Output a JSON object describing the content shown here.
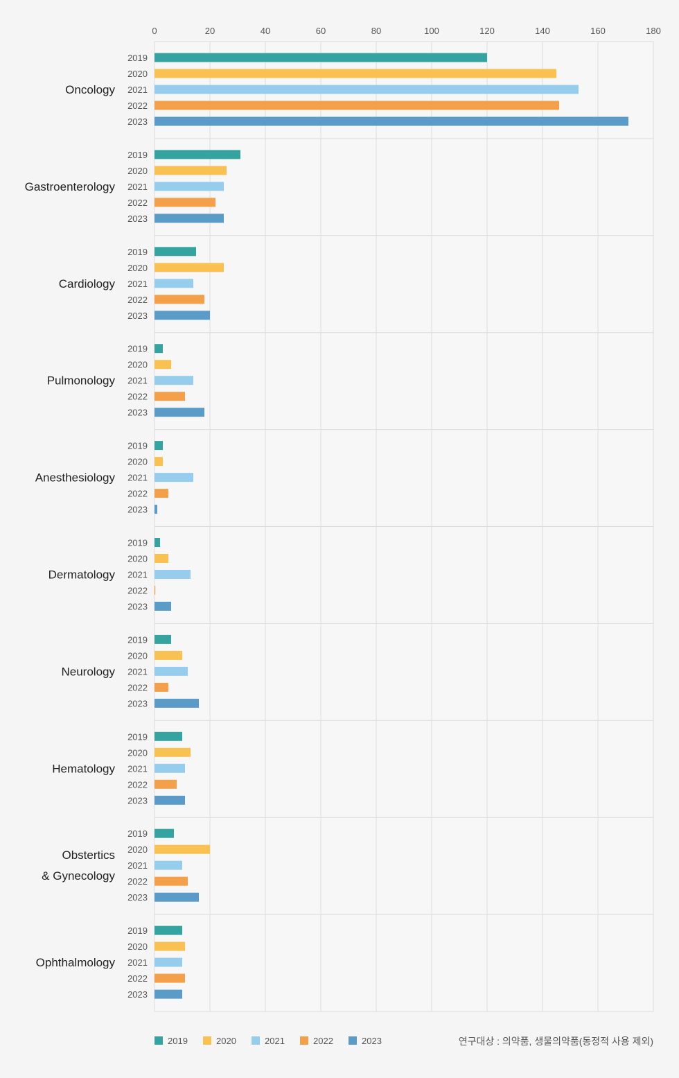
{
  "chart_data": {
    "type": "bar",
    "orientation": "horizontal",
    "xlim": [
      0,
      180
    ],
    "xticks": [
      0,
      20,
      40,
      60,
      80,
      100,
      120,
      140,
      160,
      180
    ],
    "grid": true,
    "legend_position": "bottom-left",
    "categories": [
      {
        "name": "Oncology",
        "lines": [
          "Oncology"
        ]
      },
      {
        "name": "Gastroenterology",
        "lines": [
          "Gastroenterology"
        ]
      },
      {
        "name": "Cardiology",
        "lines": [
          "Cardiology"
        ]
      },
      {
        "name": "Pulmonology",
        "lines": [
          "Pulmonology"
        ]
      },
      {
        "name": "Anesthesiology",
        "lines": [
          "Anesthesiology"
        ]
      },
      {
        "name": "Dermatology",
        "lines": [
          "Dermatology"
        ]
      },
      {
        "name": "Neurology",
        "lines": [
          "Neurology"
        ]
      },
      {
        "name": "Hematology",
        "lines": [
          "Hematology"
        ]
      },
      {
        "name": "Obstertics & Gynecology",
        "lines": [
          "Obstertics",
          "& Gynecology"
        ]
      },
      {
        "name": "Ophthalmology",
        "lines": [
          "Ophthalmology"
        ]
      }
    ],
    "series": [
      {
        "name": "2019",
        "color": "#35a3a0",
        "values": [
          120,
          31,
          15,
          3,
          3,
          2,
          6,
          10,
          7,
          10
        ]
      },
      {
        "name": "2020",
        "color": "#f9c152",
        "values": [
          145,
          26,
          25,
          6,
          3,
          5,
          10,
          13,
          20,
          11
        ]
      },
      {
        "name": "2021",
        "color": "#97cdec",
        "values": [
          153,
          25,
          14,
          14,
          14,
          13,
          12,
          11,
          10,
          10
        ]
      },
      {
        "name": "2022",
        "color": "#f4a04b",
        "values": [
          146,
          22,
          18,
          11,
          5,
          0.3,
          5,
          8,
          12,
          11
        ]
      },
      {
        "name": "2023",
        "color": "#5b9bc8",
        "values": [
          171,
          25,
          20,
          18,
          1,
          6,
          16,
          11,
          16,
          10
        ]
      }
    ]
  },
  "footnote": "연구대상 : 의약품, 생물의약품(동정적 사용 제외)"
}
